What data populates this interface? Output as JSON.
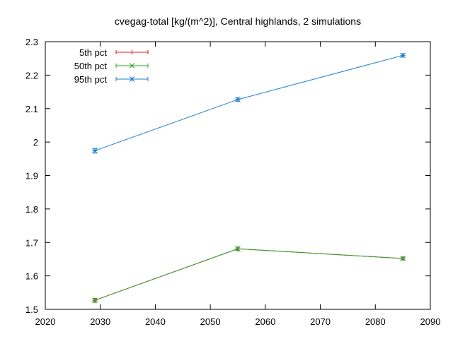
{
  "chart_data": {
    "type": "line",
    "title": "cvegag-total [kg/(m^2)], Central highlands, 2 simulations",
    "xlabel": "",
    "ylabel": "",
    "xlim": [
      2020,
      2090
    ],
    "ylim": [
      1.5,
      2.3
    ],
    "x_ticks": [
      2020,
      2030,
      2040,
      2050,
      2060,
      2070,
      2080,
      2090
    ],
    "x_tick_labels": [
      "2020",
      "2030",
      "2040",
      "2050",
      "2060",
      "2070",
      "2080",
      "2090"
    ],
    "y_ticks": [
      1.5,
      1.6,
      1.7,
      1.8,
      1.9,
      2.0,
      2.1,
      2.2,
      2.3
    ],
    "y_tick_labels": [
      "1.5",
      "1.6",
      "1.7",
      "1.8",
      "1.9",
      "2",
      "2.1",
      "2.2",
      "2.3"
    ],
    "grid": false,
    "legend_position": "top-left",
    "x": [
      2029,
      2055,
      2085
    ],
    "series": [
      {
        "name": "5th pct",
        "color": "#e41a1c",
        "marker": "plus",
        "values": [
          1.527,
          1.681,
          1.652
        ],
        "err": [
          0.005,
          0.005,
          0.004
        ]
      },
      {
        "name": "50th pct",
        "color": "#2ca02c",
        "marker": "cross",
        "values": [
          1.527,
          1.681,
          1.652
        ],
        "err": [
          0.006,
          0.005,
          0.004
        ]
      },
      {
        "name": "95th pct",
        "color": "#1a7fd4",
        "marker": "star",
        "values": [
          1.974,
          2.127,
          2.259
        ],
        "err": [
          0.007,
          0.005,
          0.005
        ]
      }
    ]
  }
}
